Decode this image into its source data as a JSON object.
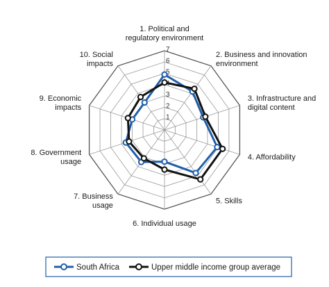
{
  "chart_data": {
    "type": "radar",
    "axes": [
      [
        "1. Political and",
        "regulatory environment"
      ],
      [
        "2. Business and innovation",
        "environment"
      ],
      [
        "3. Infrastructure and",
        "digital content"
      ],
      [
        "4. Affordability"
      ],
      [
        "5. Skills"
      ],
      [
        "6. Individual usage"
      ],
      [
        "7. Business",
        "usage"
      ],
      [
        "8. Government",
        "usage"
      ],
      [
        "9. Economic",
        "impacts"
      ],
      [
        "10. Social",
        "impacts"
      ]
    ],
    "scale": {
      "min": 0,
      "max": 7,
      "ticks": [
        "1",
        "2",
        "3",
        "4",
        "5",
        "6",
        "7"
      ]
    },
    "grid": true,
    "legend_position": "bottom",
    "series": [
      {
        "name": "South Africa",
        "color": "#1f5fa8",
        "values": [
          4.9,
          4.2,
          3.6,
          4.9,
          4.7,
          2.8,
          3.5,
          3.6,
          3.0,
          3.0
        ]
      },
      {
        "name": "Upper middle income group average",
        "color": "#111111",
        "values": [
          4.2,
          4.5,
          3.8,
          5.4,
          5.4,
          3.5,
          3.1,
          3.3,
          3.4,
          3.6
        ]
      }
    ]
  }
}
